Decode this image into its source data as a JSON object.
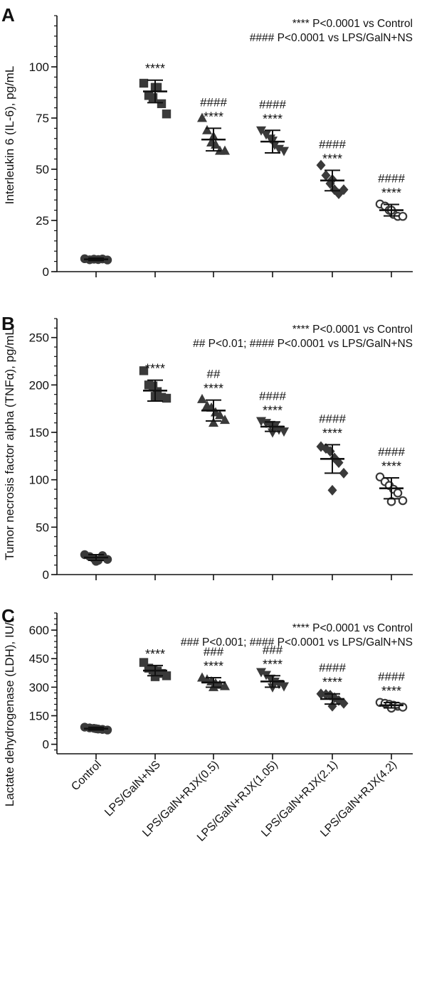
{
  "x_categories": [
    "Control",
    "LPS/GalN+NS",
    "LPS/GalN+RJX(0.5)",
    "LPS/GalN+RJX(1.05)",
    "LPS/GalN+RJX(2.1)",
    "LPS/GalN+RJX(4.2)"
  ],
  "colors": {
    "ink": "#111111",
    "marker": "#3a3a3a"
  },
  "chart_data": [
    {
      "panel_label": "A",
      "type": "scatter",
      "ylabel": "Interleukin 6 (IL-6), pg/mL",
      "ylim": [
        0,
        125
      ],
      "yticks": [
        0,
        25,
        50,
        75,
        100
      ],
      "minor_step": 5,
      "legend": [
        "**** P<0.0001 vs Control",
        "#### P<0.0001 vs LPS/GalN+NS"
      ],
      "legend_position": "top-right",
      "categories": [
        "Control",
        "LPS/GalN+NS",
        "LPS/GalN+RJX(0.5)",
        "LPS/GalN+RJX(1.05)",
        "LPS/GalN+RJX(2.1)",
        "LPS/GalN+RJX(4.2)"
      ],
      "groups": [
        {
          "marker": "circle",
          "mean": 6,
          "sd": 0.6,
          "points": [
            6.3,
            5.8,
            6.1,
            5.9,
            6.2,
            5.7
          ],
          "hash": "",
          "stars": ""
        },
        {
          "marker": "square",
          "mean": 88,
          "sd": 5.5,
          "points": [
            92,
            86,
            85,
            90,
            82,
            77,
            90
          ],
          "hash": "",
          "stars": "****"
        },
        {
          "marker": "triangle",
          "mean": 64.5,
          "sd": 5.5,
          "points": [
            75,
            69,
            63,
            62,
            59,
            59,
            66
          ],
          "hash": "####",
          "stars": "****"
        },
        {
          "marker": "triangle-down",
          "mean": 63.5,
          "sd": 5.5,
          "points": [
            69,
            67,
            65,
            62,
            60,
            59,
            64
          ],
          "hash": "####",
          "stars": "****"
        },
        {
          "marker": "diamond",
          "mean": 44.5,
          "sd": 5,
          "points": [
            52,
            47,
            43,
            40,
            38,
            40,
            45
          ],
          "hash": "####",
          "stars": "****"
        },
        {
          "marker": "circle-open",
          "mean": 30,
          "sd": 2.8,
          "points": [
            33,
            32,
            30,
            28,
            27,
            27,
            30
          ],
          "hash": "####",
          "stars": "****"
        }
      ]
    },
    {
      "panel_label": "B",
      "type": "scatter",
      "ylabel": "Tumor necrosis factor alpha (TNFα), pg/mL",
      "ylim": [
        0,
        270
      ],
      "yticks": [
        0,
        50,
        100,
        150,
        200,
        250
      ],
      "minor_step": 10,
      "legend": [
        "**** P<0.0001 vs Control",
        "## P<0.01; #### P<0.0001 vs LPS/GalN+NS"
      ],
      "legend_position": "top-right",
      "categories": [
        "Control",
        "LPS/GalN+NS",
        "LPS/GalN+RJX(0.5)",
        "LPS/GalN+RJX(1.05)",
        "LPS/GalN+RJX(2.1)",
        "LPS/GalN+RJX(4.2)"
      ],
      "groups": [
        {
          "marker": "circle",
          "mean": 18,
          "sd": 3,
          "points": [
            21,
            19,
            17,
            15,
            20,
            16,
            14
          ],
          "hash": "",
          "stars": ""
        },
        {
          "marker": "square",
          "mean": 194,
          "sd": 11,
          "points": [
            215,
            200,
            199,
            193,
            187,
            186,
            188
          ],
          "hash": "",
          "stars": "****"
        },
        {
          "marker": "triangle",
          "mean": 173,
          "sd": 11,
          "points": [
            185,
            178,
            176,
            171,
            168,
            163,
            160
          ],
          "hash": "##",
          "stars": "****"
        },
        {
          "marker": "triangle-down",
          "mean": 156,
          "sd": 5,
          "points": [
            162,
            160,
            158,
            156,
            153,
            151,
            150
          ],
          "hash": "####",
          "stars": "****"
        },
        {
          "marker": "diamond",
          "mean": 122,
          "sd": 15,
          "points": [
            135,
            133,
            130,
            123,
            118,
            107,
            89
          ],
          "hash": "####",
          "stars": "****"
        },
        {
          "marker": "circle-open",
          "mean": 91,
          "sd": 11,
          "points": [
            103,
            98,
            94,
            90,
            86,
            78,
            77
          ],
          "hash": "####",
          "stars": "****"
        }
      ]
    },
    {
      "panel_label": "C",
      "type": "scatter",
      "ylabel": "Lactate dehydrogenase (LDH), IU/L",
      "ylim": [
        -50,
        690
      ],
      "yticks": [
        0,
        150,
        300,
        450,
        600
      ],
      "minor_step": 30,
      "legend": [
        "**** P<0.0001 vs Control",
        "### P<0.001; #### P<0.0001 vs LPS/GalN+NS"
      ],
      "legend_position": "top-right",
      "categories": [
        "Control",
        "LPS/GalN+NS",
        "LPS/GalN+RJX(0.5)",
        "LPS/GalN+RJX(1.05)",
        "LPS/GalN+RJX(2.1)",
        "LPS/GalN+RJX(4.2)"
      ],
      "groups": [
        {
          "marker": "circle",
          "mean": 82,
          "sd": 7,
          "points": [
            90,
            86,
            84,
            80,
            78,
            75,
            82
          ],
          "hash": "",
          "stars": ""
        },
        {
          "marker": "square",
          "mean": 387,
          "sd": 27,
          "points": [
            430,
            400,
            390,
            385,
            372,
            360,
            355
          ],
          "hash": "",
          "stars": "****"
        },
        {
          "marker": "triangle",
          "mean": 325,
          "sd": 25,
          "points": [
            350,
            340,
            330,
            320,
            312,
            305,
            300
          ],
          "hash": "###",
          "stars": "****"
        },
        {
          "marker": "triangle-down",
          "mean": 330,
          "sd": 30,
          "points": [
            380,
            365,
            345,
            330,
            318,
            305,
            300
          ],
          "hash": "###",
          "stars": "****"
        },
        {
          "marker": "diamond",
          "mean": 238,
          "sd": 27,
          "points": [
            265,
            262,
            258,
            245,
            230,
            215,
            200
          ],
          "hash": "####",
          "stars": "****"
        },
        {
          "marker": "circle-open",
          "mean": 205,
          "sd": 14,
          "points": [
            220,
            215,
            210,
            205,
            200,
            195,
            190
          ],
          "hash": "####",
          "stars": "****"
        }
      ]
    }
  ]
}
